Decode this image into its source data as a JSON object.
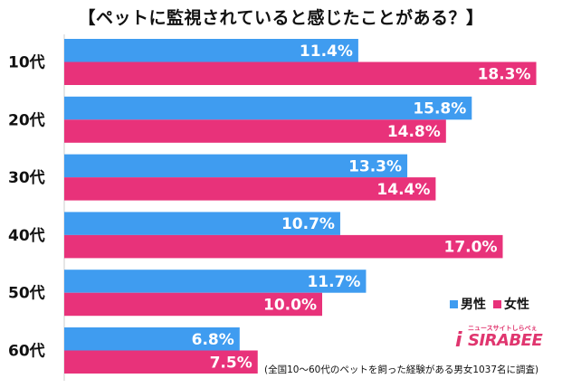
{
  "chart_data": {
    "type": "bar",
    "orientation": "horizontal",
    "title": "【ペットに監視されていると感じたことがある？】",
    "categories": [
      "10代",
      "20代",
      "30代",
      "40代",
      "50代",
      "60代"
    ],
    "series": [
      {
        "name": "男性",
        "values": [
          11.4,
          15.8,
          13.3,
          10.7,
          11.7,
          6.8
        ],
        "color": "#3f9cf0"
      },
      {
        "name": "女性",
        "values": [
          18.3,
          14.8,
          14.4,
          17.0,
          10.0,
          7.5
        ],
        "color": "#e8327a"
      }
    ],
    "value_suffix": "%",
    "xlim": [
      0,
      20
    ],
    "grid": false,
    "legend_position": "right",
    "footnote": "(全国10〜60代のペットを飼った経験がある男女1037名に調査)"
  },
  "logo": {
    "tagline": "ニュースサイトしらべぇ",
    "brand": "SIRABEE",
    "mark": "i"
  }
}
